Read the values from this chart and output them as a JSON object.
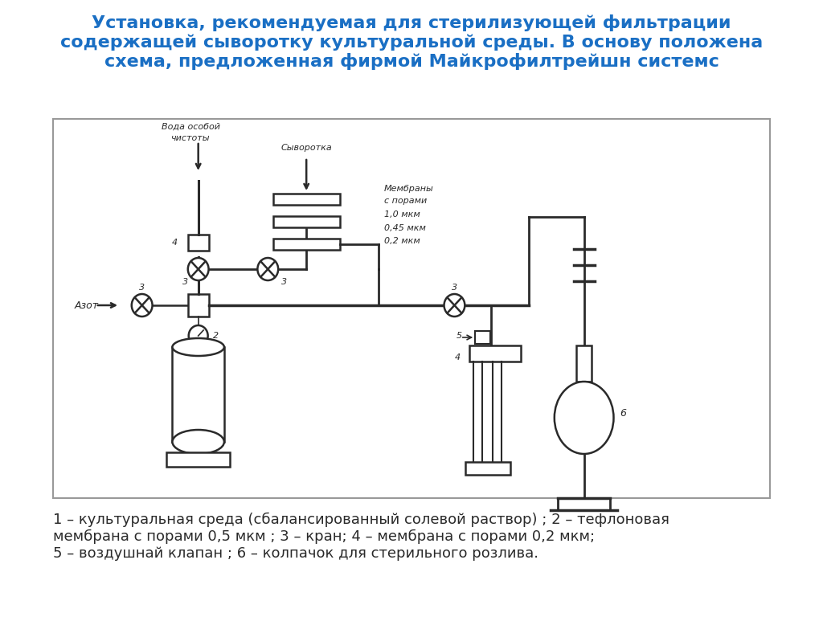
{
  "title_line1": "Установка, рекомендуемая для стерилизующей фильтрации",
  "title_line2": "содержащей сыворотку культуральной среды. В основу положена",
  "title_line3": "схема, предложенная фирмой Майкрофилтрейшн системс",
  "title_color": "#1a6fc4",
  "title_fontsize": 16,
  "caption": "1 – культуральная среда (сбалансированный солевой раствор) ; 2 – тефлоновая\nмембрана с порами 0,5 мкм ; 3 – кран; 4 – мембрана с порами 0,2 мкм;\n5 – воздушнай клапан ; 6 – колпачок для стерильного розлива.",
  "caption_fontsize": 13,
  "bg_color": "#ffffff",
  "line_color": "#2a2a2a"
}
